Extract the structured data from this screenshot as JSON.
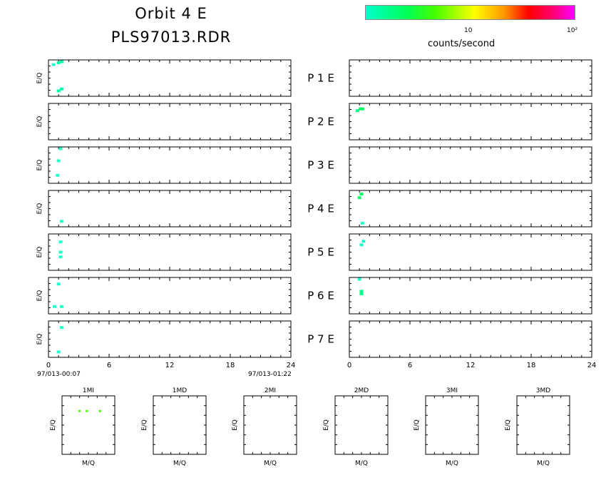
{
  "title_line1": "Orbit  4  E",
  "title_line2": "PLS97013.RDR",
  "colorbar": {
    "unit_label": "counts/second",
    "ticks": [
      "10",
      "10²"
    ],
    "colors": [
      "#00ffcc",
      "#00ff55",
      "#44ff00",
      "#ffff00",
      "#ff9900",
      "#ff0000",
      "#ff0077",
      "#ff00ff"
    ]
  },
  "chart_data": [
    {
      "type": "heatmap",
      "name": "time-series-left",
      "ylabel": "E/Q",
      "xlim": [
        0,
        24
      ],
      "x_ticks": [
        "0",
        "6",
        "12",
        "18",
        "24"
      ],
      "x_start_label": "97/013-00:07",
      "x_end_label": "97/013-01:22",
      "panels": [
        {
          "label": "P   1   E",
          "points": [
            {
              "x": 0.5,
              "y": 0.87,
              "c": "#22ffcc"
            },
            {
              "x": 1.0,
              "y": 0.92,
              "c": "#00ffaa"
            },
            {
              "x": 1.3,
              "y": 0.95,
              "c": "#00ffaa"
            },
            {
              "x": 1.0,
              "y": 0.15,
              "c": "#00ffaa"
            },
            {
              "x": 1.3,
              "y": 0.2,
              "c": "#00ffaa"
            }
          ]
        },
        {
          "label": "P   2   E",
          "points": []
        },
        {
          "label": "P   3   E",
          "points": [
            {
              "x": 1.2,
              "y": 0.95,
              "c": "#22ffcc"
            },
            {
              "x": 1.0,
              "y": 0.62,
              "c": "#22ffcc"
            },
            {
              "x": 0.9,
              "y": 0.22,
              "c": "#22ffcc"
            }
          ]
        },
        {
          "label": "P   4   E",
          "points": [
            {
              "x": 1.3,
              "y": 0.15,
              "c": "#22ffcc"
            }
          ]
        },
        {
          "label": "P   5   E",
          "points": [
            {
              "x": 1.2,
              "y": 0.78,
              "c": "#22ffcc"
            },
            {
              "x": 1.2,
              "y": 0.5,
              "c": "#22ffcc"
            },
            {
              "x": 1.2,
              "y": 0.37,
              "c": "#22ffcc"
            }
          ]
        },
        {
          "label": "P   6   E",
          "points": [
            {
              "x": 1.0,
              "y": 0.82,
              "c": "#22ffcc"
            },
            {
              "x": 0.6,
              "y": 0.2,
              "c": "#22ffcc"
            },
            {
              "x": 1.3,
              "y": 0.2,
              "c": "#22ffcc"
            }
          ]
        },
        {
          "label": "P   7   E",
          "points": [
            {
              "x": 1.3,
              "y": 0.82,
              "c": "#22ffcc"
            },
            {
              "x": 1.0,
              "y": 0.15,
              "c": "#22ffcc"
            }
          ]
        }
      ]
    },
    {
      "type": "heatmap",
      "name": "time-series-right",
      "xlim": [
        0,
        24
      ],
      "x_ticks": [
        "0",
        "6",
        "12",
        "18",
        "24"
      ],
      "panels": [
        {
          "points": []
        },
        {
          "points": [
            {
              "x": 0.8,
              "y": 0.8,
              "c": "#00ff88"
            },
            {
              "x": 1.1,
              "y": 0.85,
              "c": "#00ff66"
            },
            {
              "x": 1.3,
              "y": 0.85,
              "c": "#00ff66"
            }
          ]
        },
        {
          "points": []
        },
        {
          "points": [
            {
              "x": 1.0,
              "y": 0.8,
              "c": "#00ff66"
            },
            {
              "x": 1.2,
              "y": 0.9,
              "c": "#00ff66"
            },
            {
              "x": 1.3,
              "y": 0.1,
              "c": "#22ffcc"
            }
          ]
        },
        {
          "points": [
            {
              "x": 1.4,
              "y": 0.8,
              "c": "#22ffcc"
            },
            {
              "x": 1.2,
              "y": 0.7,
              "c": "#22ffcc"
            }
          ]
        },
        {
          "points": [
            {
              "x": 1.0,
              "y": 0.95,
              "c": "#22ffcc"
            },
            {
              "x": 1.2,
              "y": 0.62,
              "c": "#00ff88"
            },
            {
              "x": 1.2,
              "y": 0.55,
              "c": "#00ff88"
            }
          ]
        },
        {
          "points": []
        }
      ]
    },
    {
      "type": "scatter",
      "name": "mass-per-charge-panels",
      "xlabel": "M/Q",
      "ylabel": "E/Q",
      "panels": [
        {
          "label": "1MI",
          "points": [
            {
              "x": 0.33,
              "y": 0.74,
              "c": "#44ff00"
            },
            {
              "x": 0.47,
              "y": 0.74,
              "c": "#44ff00"
            },
            {
              "x": 0.72,
              "y": 0.74,
              "c": "#44ff00"
            }
          ]
        },
        {
          "label": "1MD",
          "points": []
        },
        {
          "label": "2MI",
          "points": []
        },
        {
          "label": "2MD",
          "points": []
        },
        {
          "label": "3MI",
          "points": []
        },
        {
          "label": "3MD",
          "points": []
        }
      ]
    }
  ]
}
